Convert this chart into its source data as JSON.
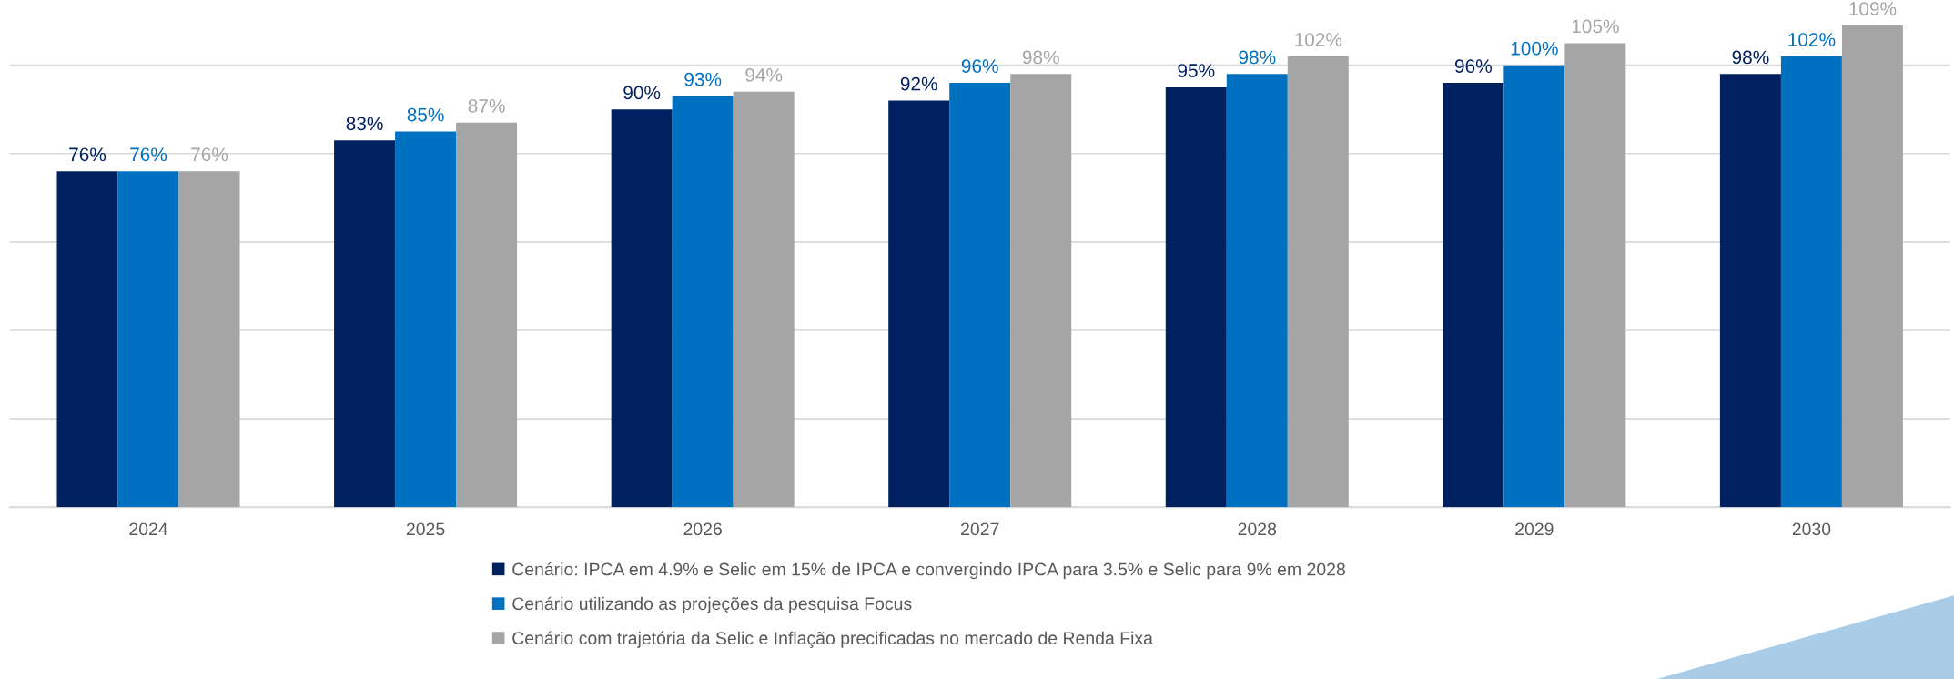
{
  "chart_data": {
    "type": "bar",
    "categories": [
      "2024",
      "2025",
      "2026",
      "2027",
      "2028",
      "2029",
      "2030"
    ],
    "series": [
      {
        "name": "Cenário: IPCA em 4.9% e Selic em 15% de IPCA e convergindo IPCA para 3.5% e Selic para 9% em 2028",
        "color": "#002060",
        "values": [
          76,
          83,
          90,
          92,
          95,
          96,
          98
        ],
        "value_labels": [
          "76%",
          "83%",
          "90%",
          "92%",
          "95%",
          "96%",
          "98%"
        ]
      },
      {
        "name": "Cenário utilizando as projeções da pesquisa Focus",
        "color": "#0070c0",
        "values": [
          76,
          85,
          93,
          96,
          98,
          100,
          102
        ],
        "value_labels": [
          "76%",
          "85%",
          "93%",
          "96%",
          "98%",
          "100%",
          "102%"
        ]
      },
      {
        "name": "Cenário com trajetória da Selic e Inflação precificadas no mercado de Renda Fixa",
        "color": "#a5a5a5",
        "values": [
          76,
          87,
          94,
          98,
          102,
          105,
          109
        ],
        "value_labels": [
          "76%",
          "87%",
          "94%",
          "98%",
          "102%",
          "105%",
          "109%"
        ]
      }
    ],
    "tick_labels": "x",
    "grid": "y",
    "legend": "bottom"
  }
}
